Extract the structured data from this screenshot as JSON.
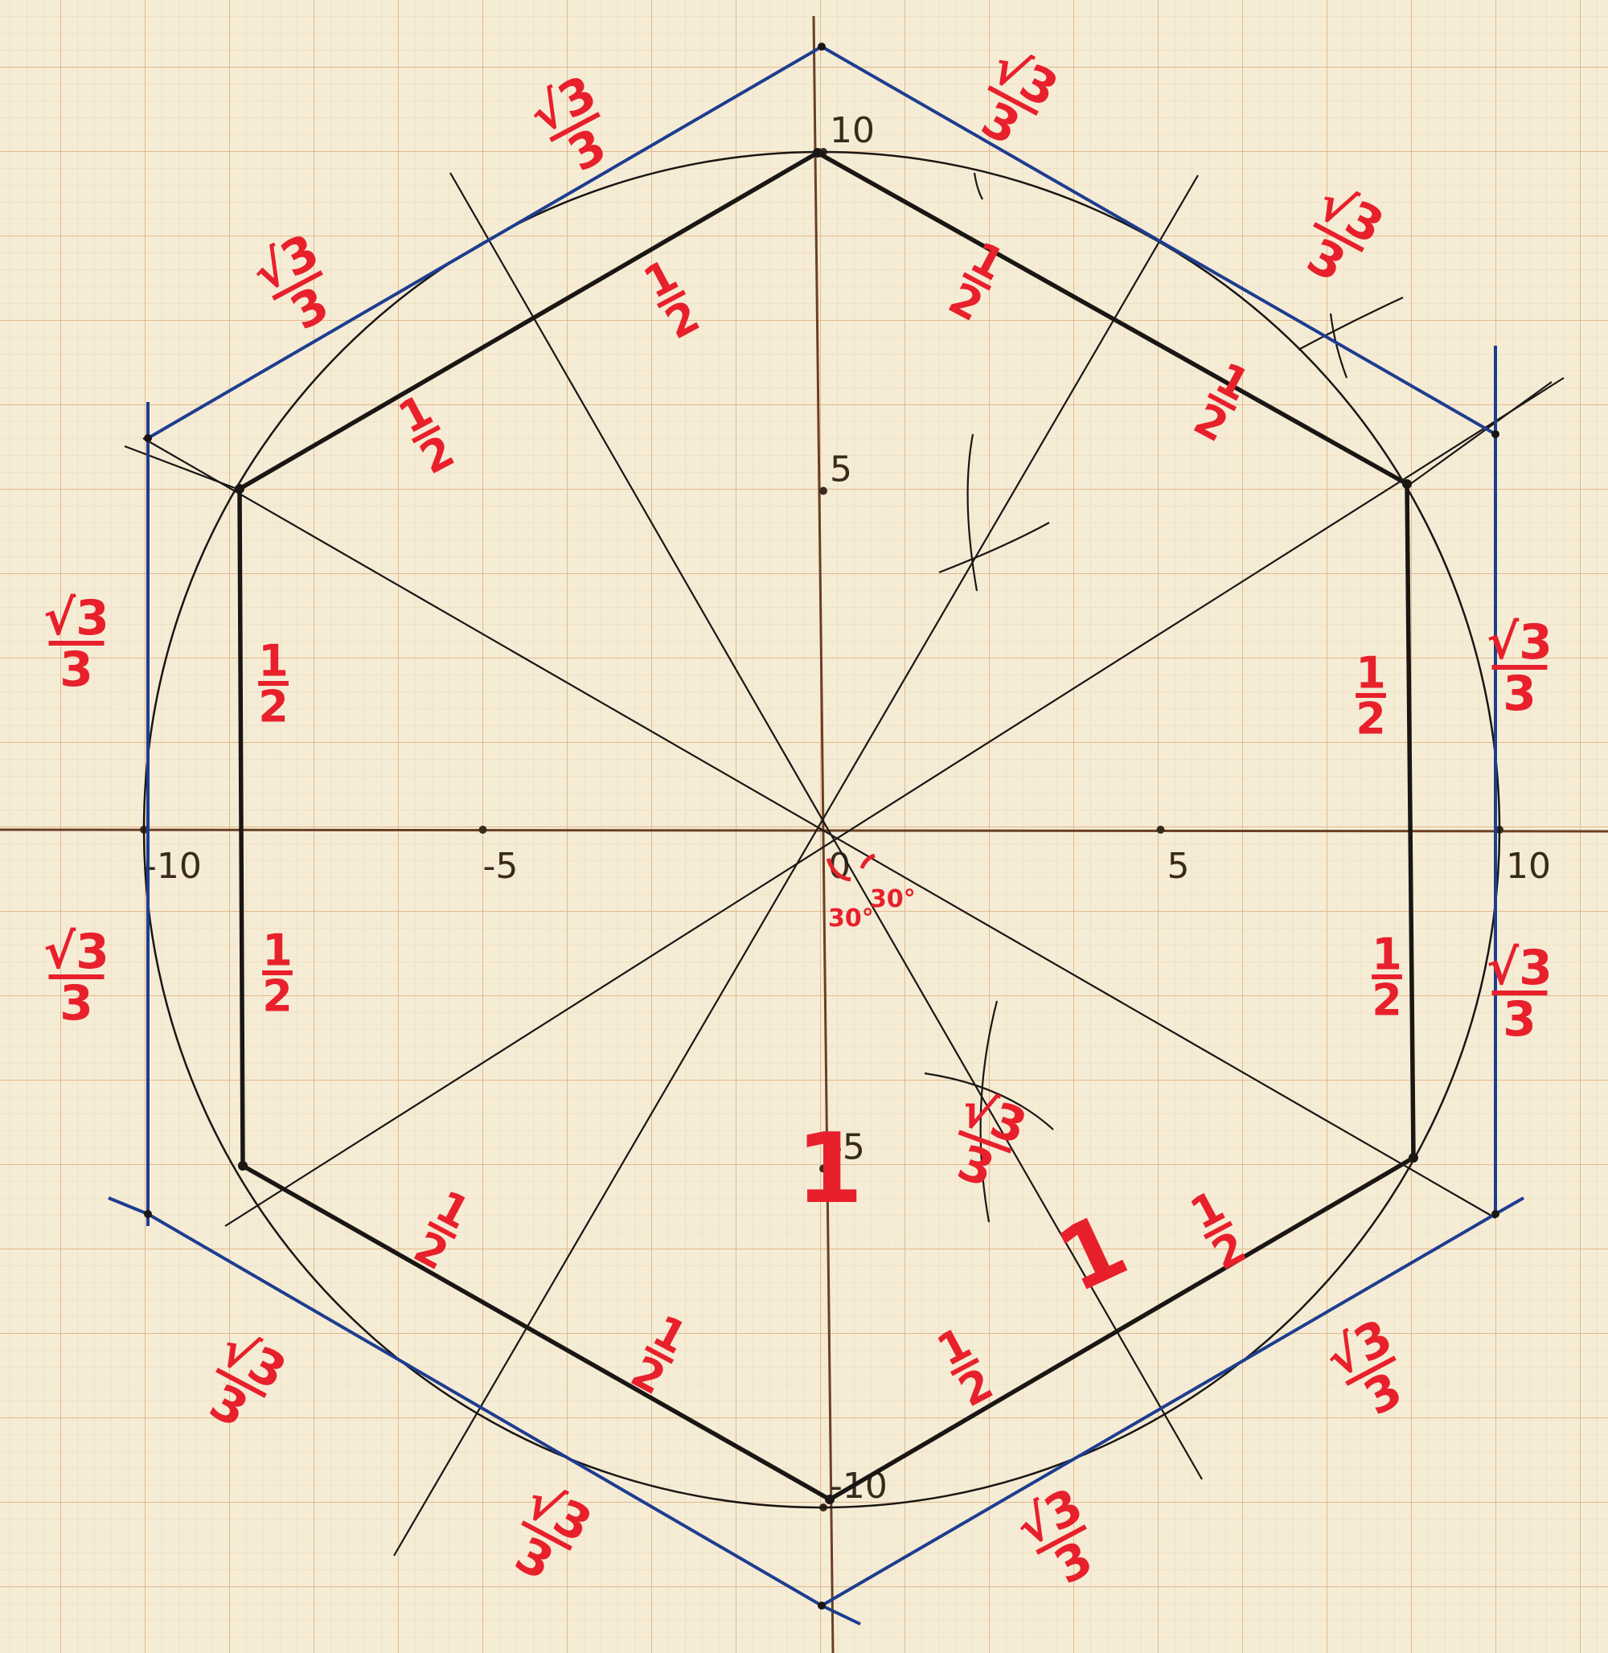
{
  "axes": {
    "x_ticks": [
      {
        "label": "-10",
        "value": -10
      },
      {
        "label": "-5",
        "value": -5
      },
      {
        "label": "0",
        "value": 0
      },
      {
        "label": "5",
        "value": 5
      },
      {
        "label": "10",
        "value": 10
      }
    ],
    "y_ticks": [
      {
        "label": "10",
        "value": 10
      },
      {
        "label": "5",
        "value": 5
      },
      {
        "label": "-5",
        "value": -5
      },
      {
        "label": "-10",
        "value": -10
      }
    ]
  },
  "labels": {
    "half_num": "1",
    "half_den": "2",
    "sqrt_top": "√3",
    "sqrt_den": "3",
    "radius_one": "1",
    "angle_left": "30°",
    "angle_right": "30°"
  },
  "colors": {
    "paper": "#f5ecd6",
    "major_grid": "#e3b98a",
    "minor_grid": "#efd6b6",
    "ink": "#1a1614",
    "annotation_red": "#e8202c",
    "outer_hexagon_blue": "#1d3d8f"
  }
}
